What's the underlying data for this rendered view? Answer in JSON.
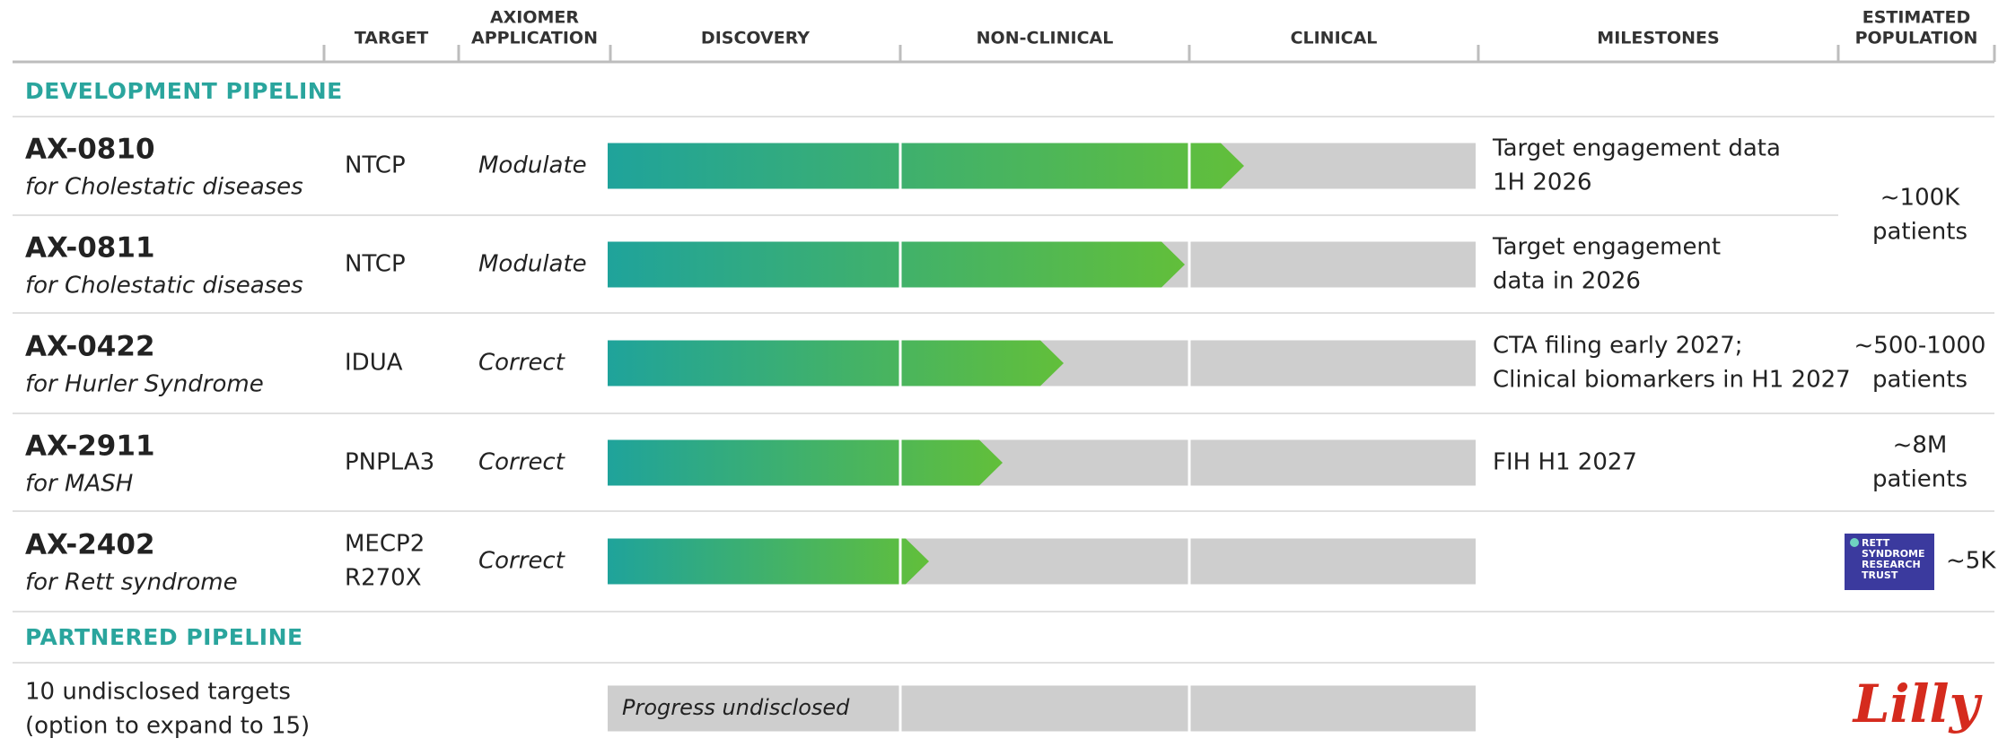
{
  "header": {
    "columns": [
      [
        "TARGET"
      ],
      [
        "AXIOMER",
        "APPLICATION"
      ],
      [
        "DISCOVERY"
      ],
      [
        "NON-CLINICAL"
      ],
      [
        "CLINICAL"
      ],
      [
        "MILESTONES"
      ],
      [
        "ESTIMATED",
        "POPULATION"
      ]
    ]
  },
  "development": {
    "title": "DEVELOPMENT PIPELINE",
    "rows": [
      {
        "name": "AX-0810",
        "indication": "for Cholestatic diseases",
        "target": [
          "NTCP"
        ],
        "application": "Modulate",
        "milestones": [
          "Target engagement data",
          "1H 2026"
        ],
        "population": [
          "~100K",
          "patients"
        ]
      },
      {
        "name": "AX-0811",
        "indication": "for Cholestatic diseases",
        "target": [
          "NTCP"
        ],
        "application": "Modulate",
        "milestones": [
          "Target engagement",
          "data in 2026"
        ]
      },
      {
        "name": "AX-0422",
        "indication": "for Hurler Syndrome",
        "target": [
          "IDUA"
        ],
        "application": "Correct",
        "milestones": [
          "CTA filing early 2027;",
          "Clinical biomarkers in H1 2027"
        ],
        "population": [
          "~500-1000",
          "patients"
        ]
      },
      {
        "name": "AX-2911",
        "indication": "for MASH",
        "target": [
          "PNPLA3"
        ],
        "application": "Correct",
        "milestones": [
          "FIH H1 2027"
        ],
        "population": [
          "~8M",
          "patients"
        ]
      },
      {
        "name": "AX-2402",
        "indication": "for Rett syndrome",
        "target": [
          "MECP2",
          "R270X"
        ],
        "application": "Correct",
        "milestones": [],
        "population": [
          "~5K"
        ],
        "logo": [
          "RETT",
          "SYNDROME",
          "RESEARCH",
          "TRUST"
        ]
      }
    ]
  },
  "partnered": {
    "title": "PARTNERED PIPELINE",
    "description": [
      "10 undisclosed targets",
      "(option to expand to 15)"
    ],
    "bar_label": "Progress undisclosed",
    "logo": "Lilly"
  }
}
